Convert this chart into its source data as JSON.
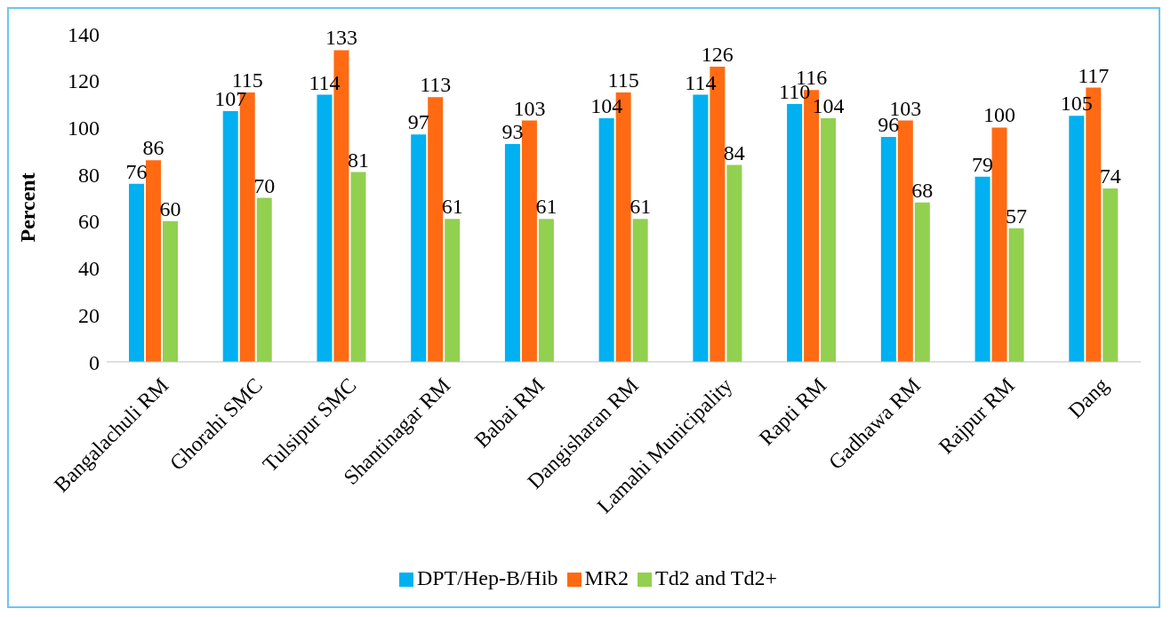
{
  "chart_data": {
    "type": "bar",
    "ylabel": "Percent",
    "categories": [
      "Bangalachuli RM",
      "Ghorahi SMC",
      "Tulsipur SMC",
      "Shantinagar RM",
      "Babai RM",
      "Dangisharan RM",
      "Lamahi Municipality",
      "Rapti RM",
      "Gadhawa RM",
      "Rajpur RM",
      "Dang"
    ],
    "series": [
      {
        "name": "DPT/Hep-B/Hib",
        "color": "#00b0f0",
        "values": [
          76,
          107,
          114,
          97,
          93,
          104,
          114,
          110,
          96,
          79,
          105
        ]
      },
      {
        "name": "MR2",
        "color": "#ff6a13",
        "values": [
          86,
          115,
          133,
          113,
          103,
          115,
          126,
          116,
          103,
          100,
          117
        ]
      },
      {
        "name": "Td2 and Td2+",
        "color": "#92d050",
        "values": [
          60,
          70,
          81,
          61,
          61,
          61,
          84,
          104,
          68,
          57,
          74
        ]
      }
    ],
    "ylim": [
      0,
      140
    ],
    "yticks": [
      0,
      20,
      40,
      60,
      80,
      100,
      120,
      140
    ],
    "data_labels": true,
    "legend": "bottom"
  }
}
